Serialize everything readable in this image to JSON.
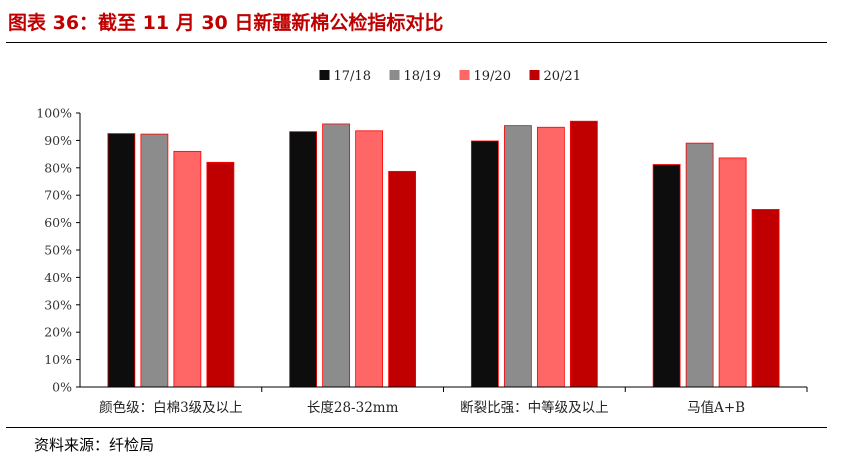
{
  "figure_title": "图表 36：截至 11 月 30 日新疆新棉公检指标对比",
  "source": "资料来源：纤检局",
  "chart_data": {
    "type": "bar",
    "categories": [
      "颜色级：白棉3级及以上",
      "长度28-32mm",
      "断裂比强：中等级及以上",
      "马值A+B"
    ],
    "series": [
      {
        "name": "17/18",
        "color": "#0d0d0d",
        "values": [
          92.5,
          93.2,
          89.8,
          81.2
        ]
      },
      {
        "name": "18/19",
        "color": "#8c8c8c",
        "values": [
          92.3,
          96.0,
          95.4,
          89.0
        ]
      },
      {
        "name": "19/20",
        "color": "#ff6666",
        "values": [
          86.0,
          93.5,
          94.8,
          83.6
        ]
      },
      {
        "name": "20/21",
        "color": "#c00000",
        "values": [
          82.0,
          78.7,
          97.0,
          64.8
        ]
      }
    ],
    "yticks": [
      "0%",
      "10%",
      "20%",
      "30%",
      "40%",
      "50%",
      "60%",
      "70%",
      "80%",
      "90%",
      "100%"
    ],
    "ylim": [
      0,
      100
    ],
    "grid": false,
    "legend": "top-center",
    "title": "",
    "xlabel": "",
    "ylabel": ""
  }
}
